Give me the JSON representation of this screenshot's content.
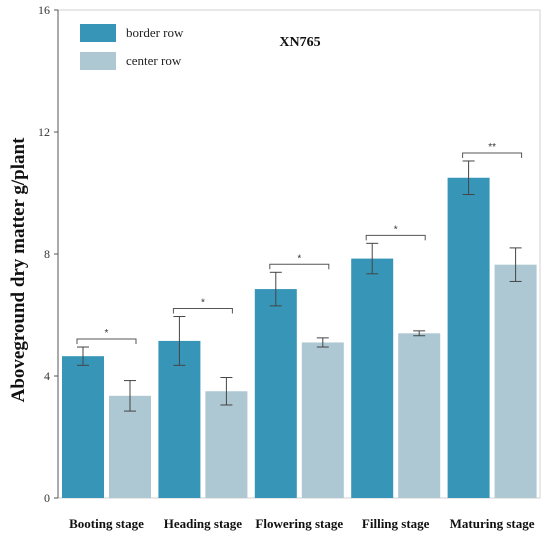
{
  "chart_data": {
    "type": "bar",
    "title": "XN765",
    "ylabel": "Aboveground dry matter g/plant",
    "xlabel": "",
    "ylim": [
      0,
      16
    ],
    "yticks": [
      0,
      4,
      8,
      12,
      16
    ],
    "categories": [
      "Booting stage",
      "Heading stage",
      "Flowering stage",
      "Filling stage",
      "Maturing stage"
    ],
    "series": [
      {
        "name": "border row",
        "color": "#3796b8",
        "values": [
          4.65,
          5.15,
          6.85,
          7.85,
          10.5
        ],
        "errors": [
          0.3,
          0.8,
          0.55,
          0.5,
          0.55
        ]
      },
      {
        "name": "center row",
        "color": "#adc8d2",
        "values": [
          3.35,
          3.5,
          5.1,
          5.4,
          7.65
        ],
        "errors": [
          0.5,
          0.45,
          0.15,
          0.08,
          0.55
        ]
      }
    ],
    "significance": [
      "*",
      "*",
      "*",
      "*",
      "**"
    ],
    "legend_position": "top-left",
    "grid": false
  }
}
